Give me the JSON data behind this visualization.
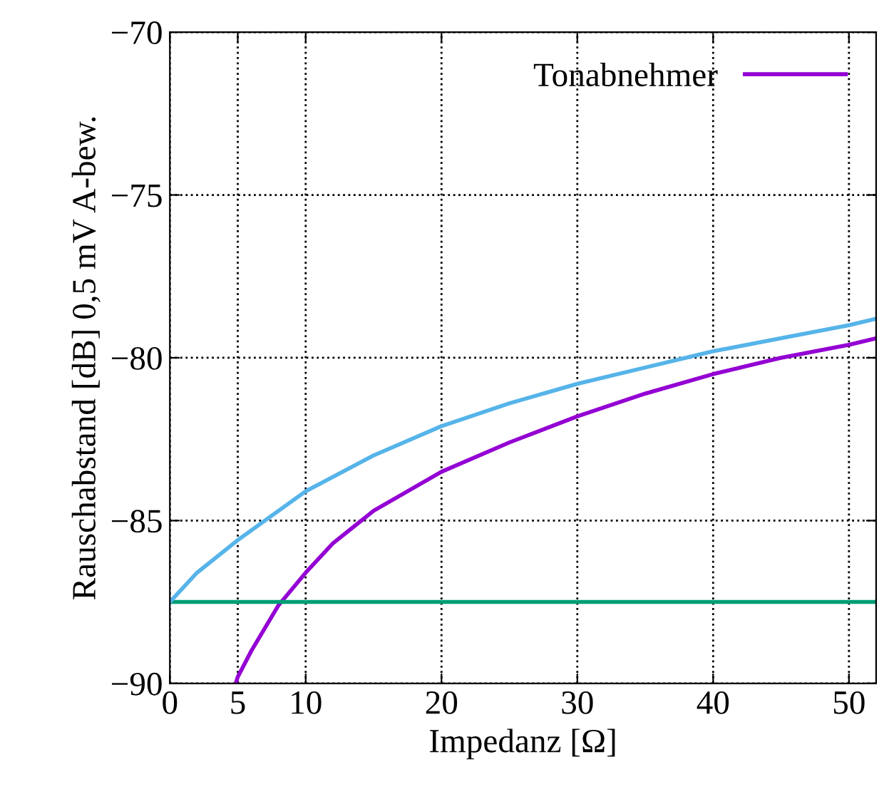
{
  "chart_data": {
    "type": "line",
    "xlabel": "Impedanz [Ω]",
    "ylabel": "Rauschabstand [dB] 0,5 mV A-bew.",
    "xlim": [
      0,
      52
    ],
    "xticks": [
      0,
      5,
      10,
      20,
      30,
      40,
      50
    ],
    "ylim": [
      -90,
      -70
    ],
    "yticks": [
      {
        "value": -90,
        "label": "−90"
      },
      {
        "value": -85,
        "label": "−85"
      },
      {
        "value": -80,
        "label": "−80"
      },
      {
        "value": -75,
        "label": "−75"
      },
      {
        "value": -70,
        "label": "−70"
      }
    ],
    "grid": true,
    "legend": "top right",
    "marker": "none",
    "line_style": "solid",
    "series": [
      {
        "name": "Tonabnehmer",
        "color": "#9400d3",
        "x": [
          4.85,
          5,
          6,
          7,
          8,
          10,
          12,
          15,
          20,
          25,
          30,
          35,
          40,
          45,
          50,
          52
        ],
        "values": [
          -90,
          -89.8,
          -89,
          -88.3,
          -87.6,
          -86.6,
          -85.7,
          -84.7,
          -83.5,
          -82.6,
          -81.8,
          -81.1,
          -80.5,
          -80.0,
          -79.6,
          -79.4
        ]
      },
      {
        "color": "#009e73",
        "x": [
          0,
          52
        ],
        "values": [
          -87.5,
          -87.5
        ]
      },
      {
        "color": "#56b4e9",
        "x": [
          0,
          2,
          5,
          10,
          15,
          20,
          25,
          30,
          35,
          40,
          45,
          50,
          52
        ],
        "values": [
          -87.5,
          -86.6,
          -85.6,
          -84.1,
          -83.0,
          -82.1,
          -81.4,
          -80.8,
          -80.3,
          -79.8,
          -79.4,
          -79.0,
          -78.8
        ]
      }
    ]
  }
}
